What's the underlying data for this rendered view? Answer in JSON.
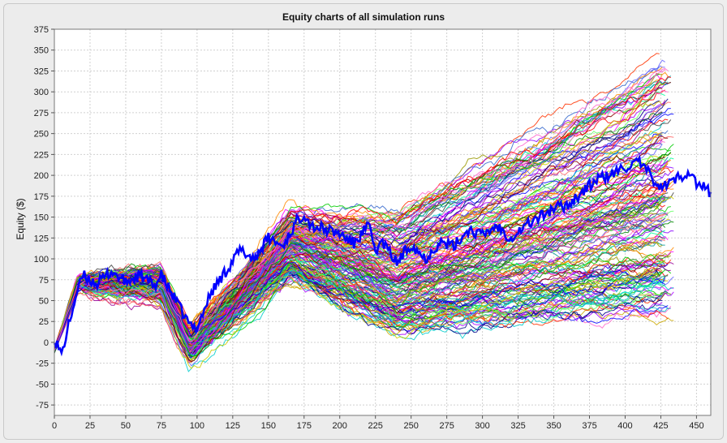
{
  "chart_data": {
    "type": "line",
    "title": "Equity charts of all simulation runs",
    "xlabel": "",
    "ylabel": "Equity ($)",
    "xlim": [
      0,
      460
    ],
    "ylim": [
      -87.5,
      375
    ],
    "x_ticks": [
      0,
      25,
      50,
      75,
      100,
      125,
      150,
      175,
      200,
      225,
      250,
      275,
      300,
      325,
      350,
      375,
      400,
      425,
      450
    ],
    "y_ticks": [
      -75,
      -50,
      -25,
      0,
      25,
      50,
      75,
      100,
      125,
      150,
      175,
      200,
      225,
      250,
      275,
      300,
      325,
      350,
      375
    ],
    "grid": true,
    "legend": "none",
    "num_background_runs": 180,
    "background_run_length_range": [
      425,
      435
    ],
    "highlight_series": {
      "color": "#0000ff",
      "points": [
        [
          0,
          6
        ],
        [
          5,
          -15
        ],
        [
          10,
          20
        ],
        [
          15,
          55
        ],
        [
          20,
          80
        ],
        [
          30,
          70
        ],
        [
          40,
          85
        ],
        [
          50,
          72
        ],
        [
          60,
          80
        ],
        [
          70,
          68
        ],
        [
          75,
          80
        ],
        [
          85,
          50
        ],
        [
          95,
          20
        ],
        [
          100,
          18
        ],
        [
          110,
          60
        ],
        [
          120,
          85
        ],
        [
          130,
          110
        ],
        [
          140,
          100
        ],
        [
          150,
          125
        ],
        [
          160,
          115
        ],
        [
          170,
          145
        ],
        [
          175,
          155
        ],
        [
          180,
          140
        ],
        [
          190,
          135
        ],
        [
          200,
          130
        ],
        [
          210,
          118
        ],
        [
          220,
          140
        ],
        [
          225,
          110
        ],
        [
          230,
          120
        ],
        [
          240,
          95
        ],
        [
          250,
          118
        ],
        [
          260,
          100
        ],
        [
          270,
          120
        ],
        [
          280,
          115
        ],
        [
          290,
          135
        ],
        [
          300,
          128
        ],
        [
          310,
          140
        ],
        [
          320,
          125
        ],
        [
          330,
          140
        ],
        [
          340,
          150
        ],
        [
          350,
          160
        ],
        [
          360,
          165
        ],
        [
          370,
          180
        ],
        [
          380,
          195
        ],
        [
          390,
          200
        ],
        [
          400,
          210
        ],
        [
          410,
          215
        ],
        [
          415,
          205
        ],
        [
          420,
          195
        ],
        [
          425,
          185
        ],
        [
          430,
          190
        ],
        [
          440,
          200
        ],
        [
          445,
          205
        ],
        [
          450,
          190
        ],
        [
          455,
          185
        ],
        [
          460,
          180
        ]
      ]
    },
    "colors": [
      "#ff0000",
      "#00cc00",
      "#0000ff",
      "#ff00ff",
      "#00cccc",
      "#cccc00",
      "#ff8800",
      "#8800ff",
      "#008800",
      "#880000",
      "#000088",
      "#ff66cc",
      "#66ff66",
      "#6666ff",
      "#999900",
      "#009999",
      "#990099",
      "#ff6666",
      "#444444",
      "#00ff99",
      "#ccaa00",
      "#aa00ff",
      "#ff3300",
      "#3366cc"
    ]
  }
}
